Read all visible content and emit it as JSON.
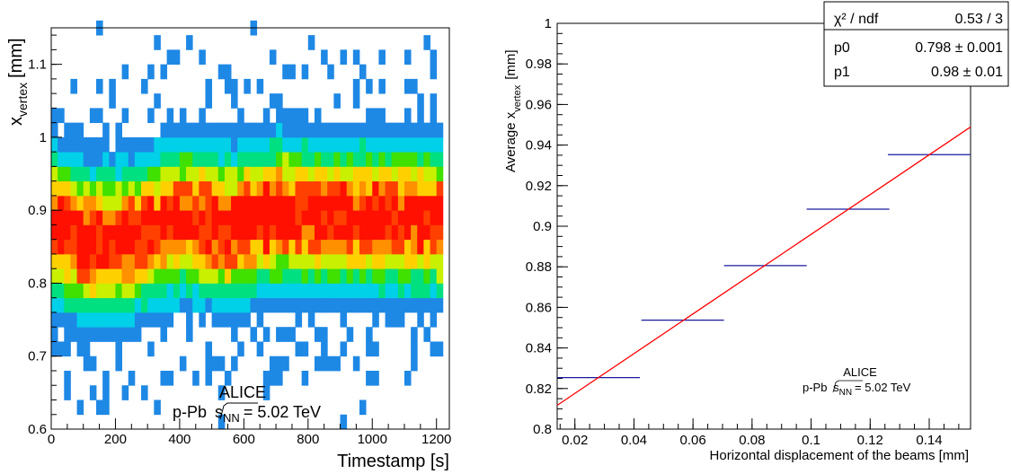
{
  "chart_data": [
    {
      "type": "heatmap",
      "xlabel": "Timestamp [s]",
      "ylabel_main": "x",
      "ylabel_sub": "vertex",
      "ylabel_unit": "[mm]",
      "xlim": [
        0,
        1240
      ],
      "ylim": [
        0.6,
        1.15
      ],
      "x_ticks": [
        0,
        200,
        400,
        600,
        800,
        1000,
        1200
      ],
      "y_ticks": [
        0.6,
        0.7,
        0.8,
        0.9,
        1,
        1.1
      ],
      "x_bin_width": 20,
      "y_bin_width": 0.02,
      "center_profile": [
        {
          "t": 0,
          "y": 0.88
        },
        {
          "t": 100,
          "y": 0.855
        },
        {
          "t": 250,
          "y": 0.86
        },
        {
          "t": 400,
          "y": 0.89
        },
        {
          "t": 550,
          "y": 0.875
        },
        {
          "t": 700,
          "y": 0.895
        },
        {
          "t": 900,
          "y": 0.89
        },
        {
          "t": 1100,
          "y": 0.89
        },
        {
          "t": 1220,
          "y": 0.885
        }
      ],
      "peak_width": 0.055,
      "palette": [
        "#1e88e5",
        "#00d0e8",
        "#00e080",
        "#40e000",
        "#c8f000",
        "#ffd000",
        "#ff9000",
        "#ff4000",
        "#ff1000"
      ],
      "annotation": {
        "experiment": "ALICE",
        "system": "p-Pb",
        "energy_label": "s",
        "energy_sub": "NN",
        "energy_value": "= 5.02 TeV"
      }
    },
    {
      "type": "scatter",
      "xlabel": "Horizontal displacement of the beams [mm]",
      "ylabel_main": "Average x",
      "ylabel_sub": "vertex",
      "ylabel_unit": "[mm]",
      "xlim": [
        0.014,
        0.154
      ],
      "ylim": [
        0.8,
        1.0
      ],
      "x_ticks": [
        0.02,
        0.04,
        0.06,
        0.08,
        0.1,
        0.12,
        0.14
      ],
      "y_ticks": [
        0.8,
        0.82,
        0.84,
        0.86,
        0.88,
        0.9,
        0.92,
        0.94,
        0.96,
        0.98,
        1
      ],
      "points": [
        {
          "x": 0.028,
          "xerr": 0.014,
          "y": 0.8254
        },
        {
          "x": 0.0565,
          "xerr": 0.014,
          "y": 0.8537
        },
        {
          "x": 0.0845,
          "xerr": 0.014,
          "y": 0.8806
        },
        {
          "x": 0.1125,
          "xerr": 0.014,
          "y": 0.9084
        },
        {
          "x": 0.14,
          "xerr": 0.014,
          "y": 0.9353
        }
      ],
      "fit": {
        "p0": 0.798,
        "p1": 0.98
      },
      "stats": [
        {
          "name": "χ² / ndf",
          "value": "0.53 / 3"
        },
        {
          "name": "p0",
          "value": "0.798 ± 0.001"
        },
        {
          "name": "p1",
          "value": "0.98 ± 0.01"
        }
      ],
      "annotation": {
        "experiment": "ALICE",
        "system": "p-Pb",
        "energy_label": "s",
        "energy_sub": "NN",
        "energy_value": "= 5.02 TeV"
      }
    }
  ]
}
